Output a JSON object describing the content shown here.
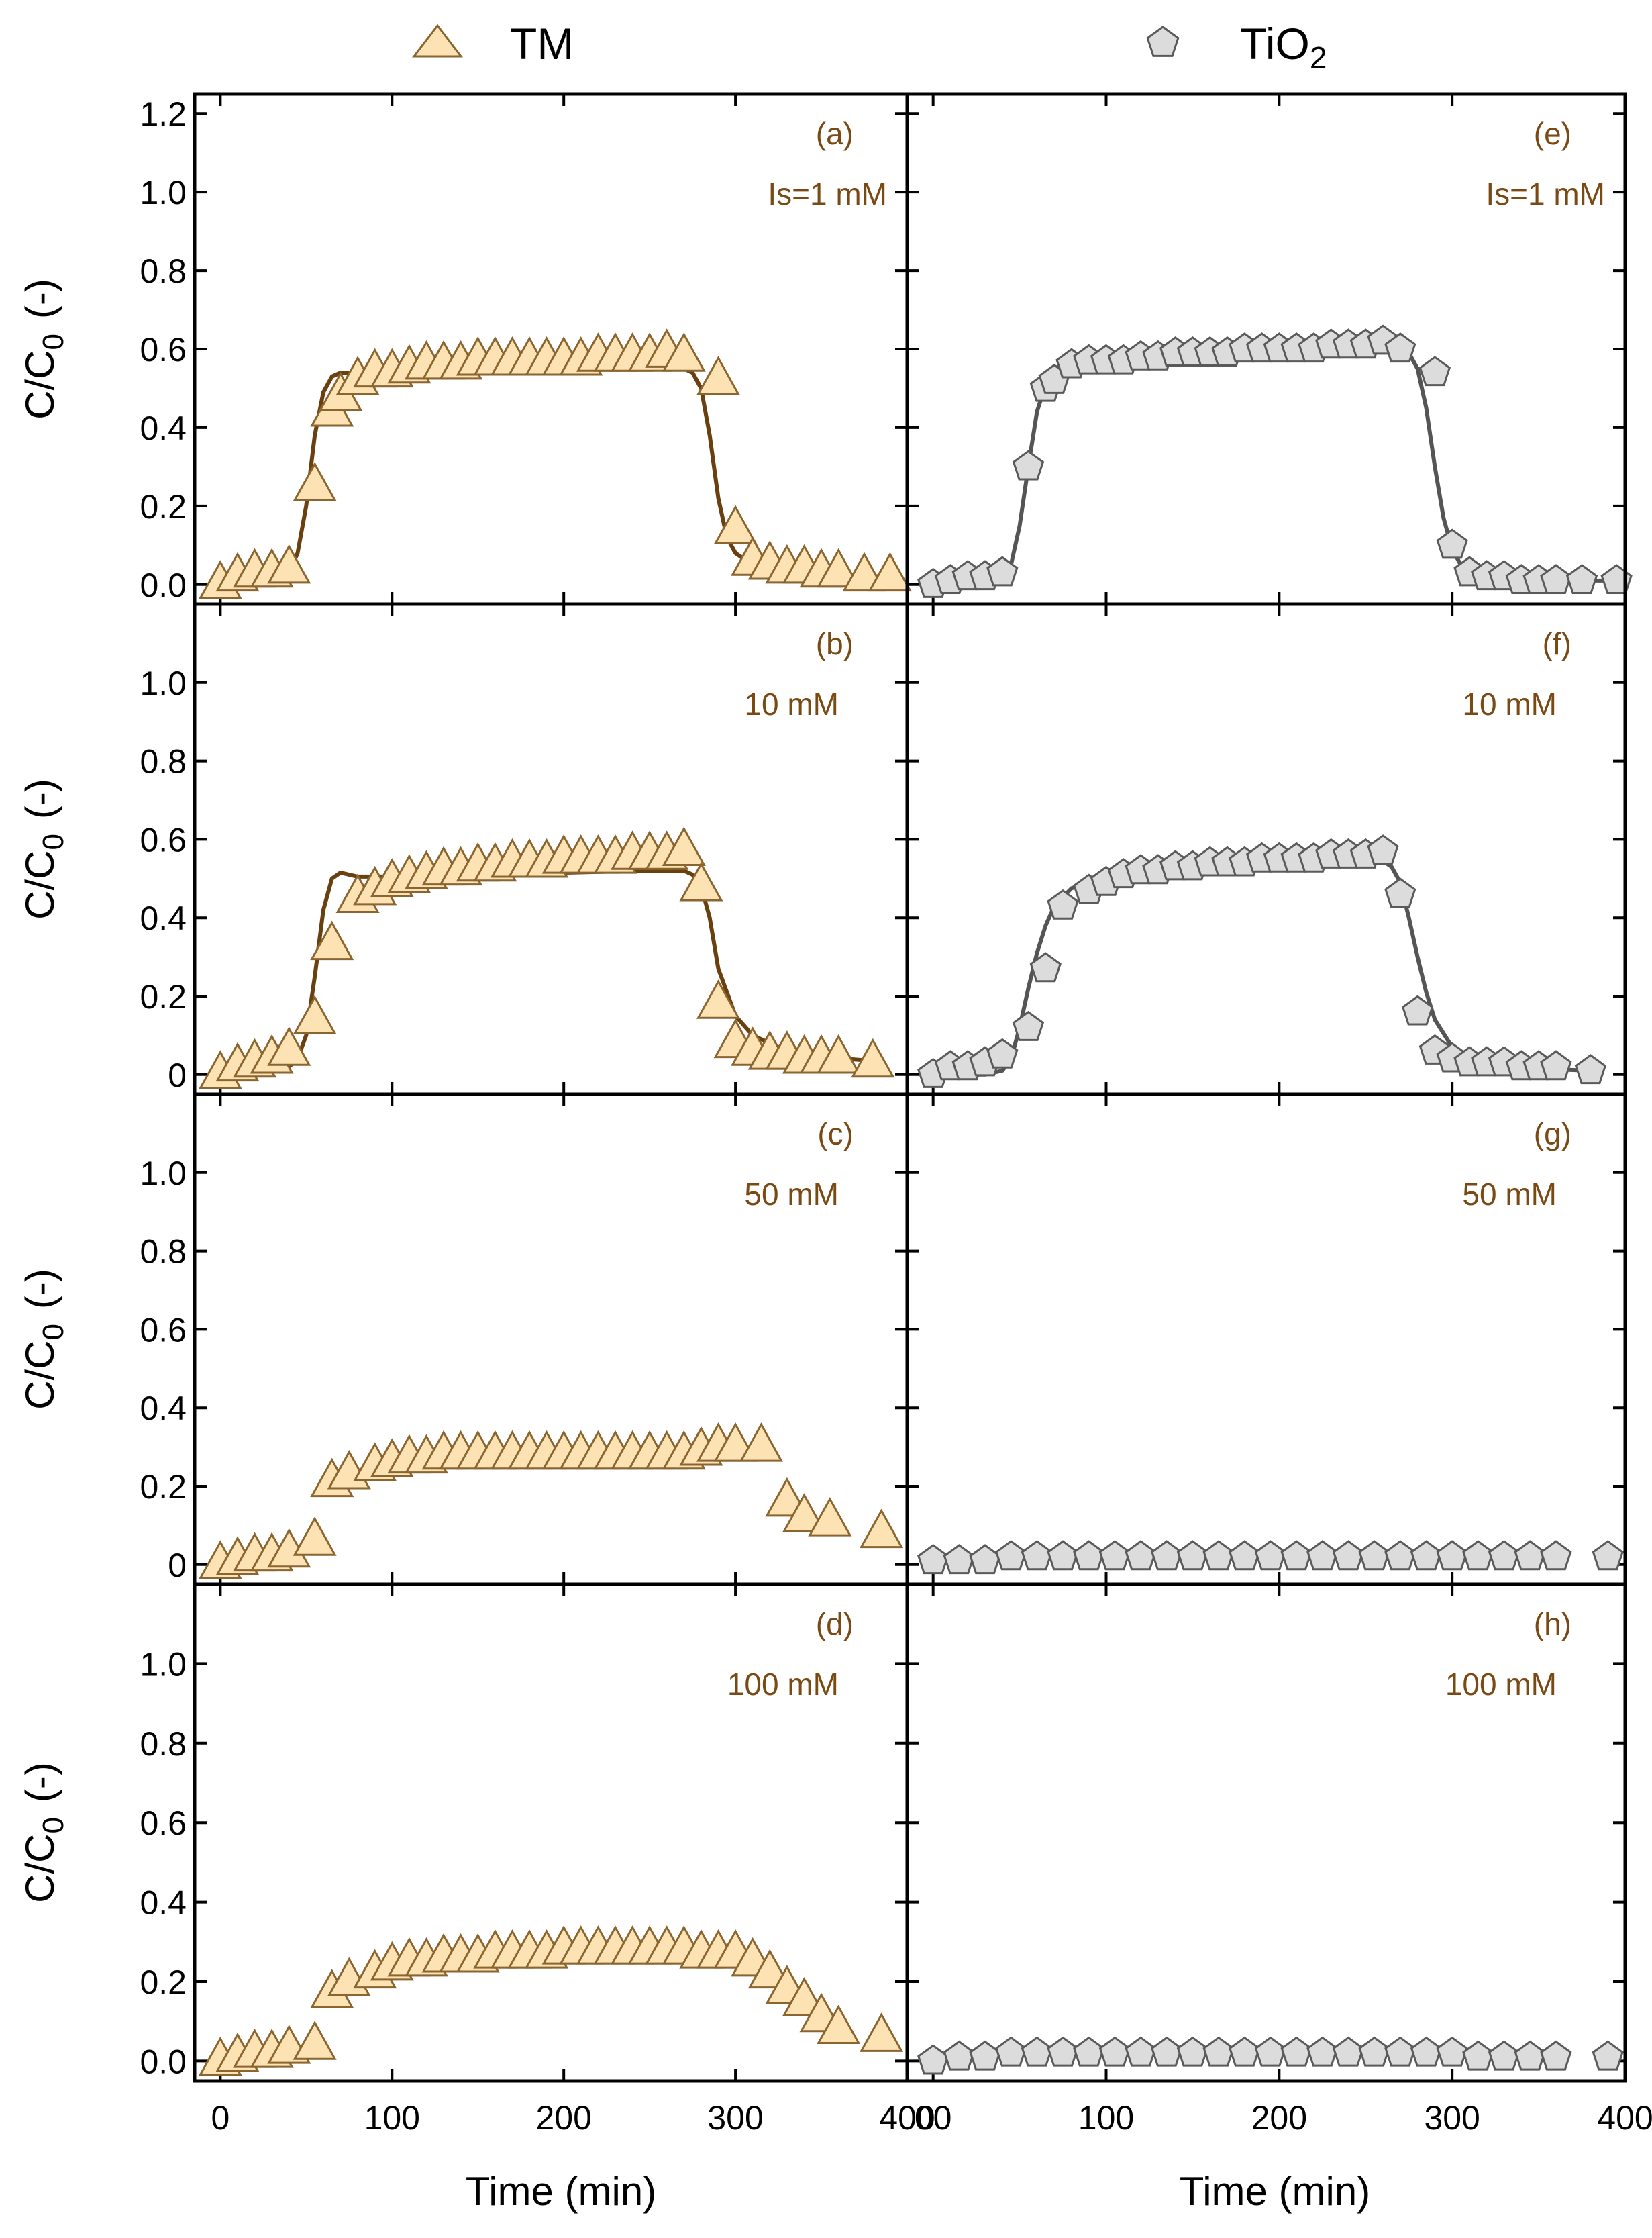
{
  "colors": {
    "tm_fill": "#fde3b4",
    "tm_stroke": "#8a6530",
    "tm_line": "#6b4010",
    "tio2_fill": "#dcdcdc",
    "tio2_stroke": "#5a5a5a",
    "tio2_line": "#555555",
    "label": "#7a4a15",
    "axis": "#000000"
  },
  "legend": {
    "tm": {
      "label": "TM",
      "marker": "triangle"
    },
    "tio2": {
      "label": "TiO",
      "subscript": "2",
      "marker": "pentagon"
    }
  },
  "y_axis_title": {
    "main": "C/C",
    "subscript": "0",
    "suffix": "(-)"
  },
  "x_axis_title": "Time (min)",
  "chart_data": [
    {
      "id": "a",
      "type": "scatter",
      "column": "left",
      "row": 0,
      "label": "(a)",
      "condition": "Is=1 mM",
      "series_name": "TM",
      "xlim": [
        -15,
        400
      ],
      "ylim": [
        -0.05,
        1.25
      ],
      "yticks": [
        0,
        0.2,
        0.4,
        0.6,
        0.8,
        1.0,
        1.2
      ],
      "ytick_labels": [
        "0.0",
        "0.2",
        "0.4",
        "0.6",
        "0.8",
        "1.0",
        "1.2"
      ],
      "x": [
        0,
        10,
        20,
        30,
        40,
        55,
        65,
        70,
        80,
        90,
        100,
        110,
        120,
        130,
        140,
        150,
        160,
        170,
        180,
        190,
        200,
        210,
        220,
        230,
        240,
        250,
        260,
        270,
        290,
        300,
        310,
        320,
        330,
        340,
        350,
        360,
        375,
        390
      ],
      "y": [
        0.0,
        0.02,
        0.03,
        0.03,
        0.04,
        0.25,
        0.44,
        0.48,
        0.52,
        0.54,
        0.54,
        0.55,
        0.56,
        0.56,
        0.56,
        0.57,
        0.57,
        0.57,
        0.57,
        0.57,
        0.57,
        0.57,
        0.58,
        0.58,
        0.58,
        0.58,
        0.59,
        0.58,
        0.52,
        0.14,
        0.06,
        0.05,
        0.04,
        0.04,
        0.03,
        0.03,
        0.02,
        0.02
      ],
      "fit": {
        "x": [
          0,
          10,
          20,
          30,
          40,
          45,
          50,
          55,
          60,
          65,
          70,
          80,
          100,
          150,
          200,
          250,
          270,
          275,
          280,
          285,
          290,
          295,
          300,
          310,
          320,
          340,
          360,
          390
        ],
        "y": [
          0.0,
          0.0,
          0.0,
          0.01,
          0.03,
          0.08,
          0.2,
          0.38,
          0.49,
          0.53,
          0.54,
          0.54,
          0.54,
          0.545,
          0.55,
          0.55,
          0.55,
          0.54,
          0.5,
          0.38,
          0.22,
          0.12,
          0.08,
          0.05,
          0.04,
          0.03,
          0.025,
          0.02
        ]
      }
    },
    {
      "id": "b",
      "type": "scatter",
      "column": "left",
      "row": 1,
      "label": "(b)",
      "condition": "10 mM",
      "series_name": "TM",
      "xlim": [
        -15,
        400
      ],
      "ylim": [
        -0.05,
        1.2
      ],
      "yticks": [
        0,
        0.2,
        0.4,
        0.6,
        0.8,
        1.0
      ],
      "ytick_labels": [
        "0",
        "0.2",
        "0.4",
        "0.6",
        "0.8",
        "1.0"
      ],
      "x": [
        0,
        10,
        20,
        30,
        40,
        55,
        65,
        80,
        90,
        100,
        110,
        120,
        130,
        140,
        150,
        160,
        170,
        180,
        190,
        200,
        210,
        220,
        230,
        240,
        250,
        260,
        270,
        280,
        290,
        300,
        310,
        320,
        330,
        340,
        350,
        360,
        380
      ],
      "y": [
        0.0,
        0.02,
        0.03,
        0.04,
        0.06,
        0.14,
        0.33,
        0.45,
        0.47,
        0.49,
        0.5,
        0.51,
        0.52,
        0.52,
        0.53,
        0.53,
        0.54,
        0.54,
        0.54,
        0.55,
        0.55,
        0.55,
        0.55,
        0.56,
        0.56,
        0.56,
        0.57,
        0.48,
        0.18,
        0.08,
        0.06,
        0.05,
        0.05,
        0.04,
        0.04,
        0.04,
        0.03
      ],
      "fit": {
        "x": [
          0,
          20,
          30,
          40,
          45,
          50,
          55,
          60,
          65,
          70,
          75,
          80,
          100,
          150,
          200,
          250,
          270,
          275,
          280,
          285,
          290,
          300,
          310,
          330,
          350,
          380
        ],
        "y": [
          0.0,
          0.0,
          0.01,
          0.02,
          0.04,
          0.1,
          0.25,
          0.42,
          0.5,
          0.515,
          0.51,
          0.505,
          0.505,
          0.51,
          0.515,
          0.52,
          0.52,
          0.51,
          0.48,
          0.4,
          0.27,
          0.15,
          0.1,
          0.06,
          0.045,
          0.035
        ]
      }
    },
    {
      "id": "c",
      "type": "scatter",
      "column": "left",
      "row": 2,
      "label": "(c)",
      "condition": "50 mM",
      "series_name": "TM",
      "xlim": [
        -15,
        400
      ],
      "ylim": [
        -0.05,
        1.2
      ],
      "yticks": [
        0,
        0.2,
        0.4,
        0.6,
        0.8,
        1.0
      ],
      "ytick_labels": [
        "0",
        "0.2",
        "0.4",
        "0.6",
        "0.8",
        "1.0"
      ],
      "x": [
        0,
        10,
        20,
        30,
        40,
        55,
        65,
        75,
        90,
        100,
        110,
        120,
        130,
        140,
        150,
        160,
        170,
        180,
        190,
        200,
        210,
        220,
        230,
        240,
        250,
        260,
        270,
        280,
        290,
        300,
        315,
        330,
        340,
        355,
        385
      ],
      "y": [
        0.0,
        0.01,
        0.02,
        0.02,
        0.03,
        0.06,
        0.21,
        0.23,
        0.25,
        0.26,
        0.27,
        0.27,
        0.28,
        0.28,
        0.28,
        0.28,
        0.28,
        0.28,
        0.28,
        0.28,
        0.28,
        0.28,
        0.28,
        0.28,
        0.28,
        0.28,
        0.28,
        0.29,
        0.3,
        0.3,
        0.3,
        0.16,
        0.12,
        0.11,
        0.08
      ]
    },
    {
      "id": "d",
      "type": "scatter",
      "column": "left",
      "row": 3,
      "label": "(d)",
      "condition": "100 mM",
      "series_name": "TM",
      "xlim": [
        -15,
        400
      ],
      "ylim": [
        -0.05,
        1.2
      ],
      "yticks": [
        0,
        0.2,
        0.4,
        0.6,
        0.8,
        1.0
      ],
      "ytick_labels": [
        "0.0",
        "0.2",
        "0.4",
        "0.6",
        "0.8",
        "1.0"
      ],
      "x": [
        0,
        10,
        20,
        30,
        40,
        55,
        65,
        75,
        90,
        100,
        110,
        120,
        130,
        140,
        150,
        160,
        170,
        180,
        190,
        200,
        210,
        220,
        230,
        240,
        250,
        260,
        270,
        280,
        290,
        300,
        310,
        320,
        330,
        340,
        350,
        360,
        385
      ],
      "y": [
        0.0,
        0.01,
        0.02,
        0.02,
        0.03,
        0.04,
        0.17,
        0.2,
        0.22,
        0.24,
        0.25,
        0.25,
        0.26,
        0.26,
        0.26,
        0.27,
        0.27,
        0.27,
        0.27,
        0.28,
        0.28,
        0.28,
        0.28,
        0.28,
        0.28,
        0.28,
        0.28,
        0.27,
        0.27,
        0.27,
        0.25,
        0.22,
        0.18,
        0.15,
        0.11,
        0.08,
        0.06
      ]
    },
    {
      "id": "e",
      "type": "scatter",
      "column": "right",
      "row": 0,
      "label": "(e)",
      "condition": "Is=1 mM",
      "series_name": "TiO2",
      "xlim": [
        -15,
        400
      ],
      "ylim": [
        -0.05,
        1.25
      ],
      "yticks": [
        0,
        0.2,
        0.4,
        0.6,
        0.8,
        1.0,
        1.2
      ],
      "ytick_labels": [
        "0.0",
        "0.2",
        "0.4",
        "0.6",
        "0.8",
        "1.0",
        "1.2"
      ],
      "x": [
        0,
        10,
        20,
        30,
        40,
        55,
        65,
        70,
        80,
        90,
        100,
        110,
        120,
        130,
        140,
        150,
        160,
        170,
        180,
        190,
        200,
        210,
        220,
        230,
        240,
        250,
        260,
        270,
        290,
        300,
        310,
        320,
        330,
        340,
        350,
        360,
        375,
        395
      ],
      "y": [
        0.0,
        0.01,
        0.02,
        0.02,
        0.03,
        0.3,
        0.5,
        0.52,
        0.56,
        0.57,
        0.57,
        0.57,
        0.58,
        0.58,
        0.59,
        0.59,
        0.59,
        0.59,
        0.6,
        0.6,
        0.6,
        0.6,
        0.6,
        0.61,
        0.61,
        0.61,
        0.62,
        0.6,
        0.54,
        0.1,
        0.03,
        0.02,
        0.02,
        0.01,
        0.01,
        0.01,
        0.01,
        0.01
      ],
      "fit": {
        "x": [
          0,
          20,
          30,
          40,
          45,
          50,
          55,
          60,
          65,
          70,
          75,
          80,
          100,
          150,
          200,
          250,
          270,
          275,
          280,
          285,
          290,
          295,
          300,
          305,
          310,
          320,
          340,
          360,
          390
        ],
        "y": [
          0.0,
          0.0,
          0.0,
          0.02,
          0.05,
          0.15,
          0.3,
          0.44,
          0.51,
          0.55,
          0.56,
          0.565,
          0.575,
          0.585,
          0.59,
          0.6,
          0.6,
          0.59,
          0.55,
          0.45,
          0.3,
          0.17,
          0.09,
          0.05,
          0.03,
          0.02,
          0.015,
          0.01,
          0.01
        ]
      }
    },
    {
      "id": "f",
      "type": "scatter",
      "column": "right",
      "row": 1,
      "label": "(f)",
      "condition": "10 mM",
      "series_name": "TiO2",
      "xlim": [
        -15,
        400
      ],
      "ylim": [
        -0.05,
        1.2
      ],
      "yticks": [
        0,
        0.2,
        0.4,
        0.6,
        0.8,
        1.0
      ],
      "ytick_labels": [
        "0",
        "0.2",
        "0.4",
        "0.6",
        "0.8",
        "1.0"
      ],
      "x": [
        0,
        10,
        20,
        30,
        40,
        55,
        65,
        75,
        90,
        100,
        110,
        120,
        130,
        140,
        150,
        160,
        170,
        180,
        190,
        200,
        210,
        220,
        230,
        240,
        250,
        260,
        270,
        280,
        290,
        300,
        310,
        320,
        330,
        340,
        350,
        360,
        380
      ],
      "y": [
        0.0,
        0.02,
        0.02,
        0.03,
        0.05,
        0.12,
        0.27,
        0.43,
        0.47,
        0.49,
        0.51,
        0.52,
        0.52,
        0.53,
        0.53,
        0.54,
        0.54,
        0.54,
        0.55,
        0.55,
        0.55,
        0.55,
        0.56,
        0.56,
        0.56,
        0.57,
        0.46,
        0.16,
        0.06,
        0.04,
        0.03,
        0.03,
        0.03,
        0.02,
        0.02,
        0.02,
        0.01
      ],
      "fit": {
        "x": [
          0,
          20,
          30,
          40,
          45,
          50,
          55,
          60,
          65,
          70,
          80,
          100,
          120,
          150,
          200,
          250,
          260,
          265,
          270,
          275,
          280,
          285,
          290,
          300,
          310,
          330,
          350,
          380
        ],
        "y": [
          0.0,
          0.0,
          0.0,
          0.01,
          0.04,
          0.12,
          0.22,
          0.31,
          0.38,
          0.43,
          0.475,
          0.505,
          0.52,
          0.53,
          0.54,
          0.545,
          0.545,
          0.53,
          0.49,
          0.4,
          0.3,
          0.21,
          0.14,
          0.07,
          0.04,
          0.025,
          0.015,
          0.01
        ]
      }
    },
    {
      "id": "g",
      "type": "scatter",
      "column": "right",
      "row": 2,
      "label": "(g)",
      "condition": "50 mM",
      "series_name": "TiO2",
      "xlim": [
        -15,
        400
      ],
      "ylim": [
        -0.05,
        1.2
      ],
      "yticks": [
        0,
        0.2,
        0.4,
        0.6,
        0.8,
        1.0
      ],
      "ytick_labels": [
        "0",
        "0.2",
        "0.4",
        "0.6",
        "0.8",
        "1.0"
      ],
      "x": [
        0,
        15,
        30,
        45,
        60,
        75,
        90,
        105,
        120,
        135,
        150,
        165,
        180,
        195,
        210,
        225,
        240,
        255,
        270,
        285,
        300,
        315,
        330,
        345,
        360,
        390
      ],
      "y": [
        0.01,
        0.01,
        0.01,
        0.02,
        0.02,
        0.02,
        0.02,
        0.02,
        0.02,
        0.02,
        0.02,
        0.02,
        0.02,
        0.02,
        0.02,
        0.02,
        0.02,
        0.02,
        0.02,
        0.02,
        0.02,
        0.02,
        0.02,
        0.02,
        0.02,
        0.02
      ]
    },
    {
      "id": "h",
      "type": "scatter",
      "column": "right",
      "row": 3,
      "label": "(h)",
      "condition": "100 mM",
      "series_name": "TiO2",
      "xlim": [
        -15,
        400
      ],
      "ylim": [
        -0.05,
        1.2
      ],
      "yticks": [
        0,
        0.2,
        0.4,
        0.6,
        0.8,
        1.0
      ],
      "ytick_labels": [
        "0.0",
        "0.2",
        "0.4",
        "0.6",
        "0.8",
        "1.0"
      ],
      "xlabel": "Time (min)",
      "x": [
        0,
        15,
        30,
        45,
        60,
        75,
        90,
        105,
        120,
        135,
        150,
        165,
        180,
        195,
        210,
        225,
        240,
        255,
        270,
        285,
        300,
        315,
        330,
        345,
        360,
        390
      ],
      "y": [
        0.0,
        0.01,
        0.01,
        0.02,
        0.02,
        0.02,
        0.02,
        0.02,
        0.02,
        0.02,
        0.02,
        0.02,
        0.02,
        0.02,
        0.02,
        0.02,
        0.02,
        0.02,
        0.02,
        0.02,
        0.02,
        0.01,
        0.01,
        0.01,
        0.01,
        0.01
      ]
    }
  ],
  "x_axis": {
    "left": {
      "ticks": [
        0,
        100,
        200,
        300,
        400
      ],
      "labels": [
        "0",
        "100",
        "200",
        "300",
        "400"
      ]
    },
    "right": {
      "ticks": [
        0,
        100,
        200,
        300,
        400
      ],
      "labels": [
        "00",
        "100",
        "200",
        "300",
        "400"
      ]
    }
  }
}
